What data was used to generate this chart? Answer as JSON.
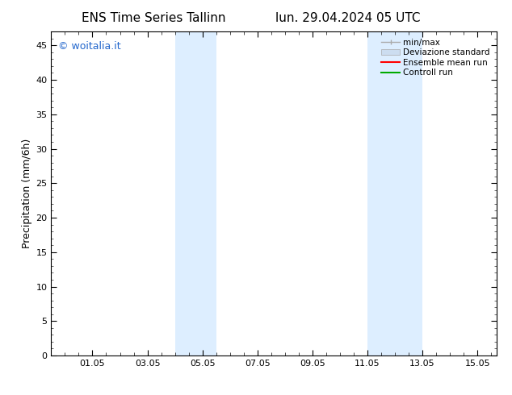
{
  "title": "ENS Time Series Tallinn",
  "title2": "lun. 29.04.2024 05 UTC",
  "ylabel": "Precipitation (mm/6h)",
  "xlim": [
    -0.5,
    15.7
  ],
  "ylim": [
    0,
    47
  ],
  "yticks": [
    0,
    5,
    10,
    15,
    20,
    25,
    30,
    35,
    40,
    45
  ],
  "xtick_labels": [
    "01.05",
    "03.05",
    "05.05",
    "07.05",
    "09.05",
    "11.05",
    "13.05",
    "15.05"
  ],
  "xtick_positions": [
    1.0,
    3.0,
    5.0,
    7.0,
    9.0,
    11.0,
    13.0,
    15.0
  ],
  "minor_xtick_positions": [
    0.0,
    0.5,
    1.0,
    1.5,
    2.0,
    2.5,
    3.0,
    3.5,
    4.0,
    4.5,
    5.0,
    5.5,
    6.0,
    6.5,
    7.0,
    7.5,
    8.0,
    8.5,
    9.0,
    9.5,
    10.0,
    10.5,
    11.0,
    11.5,
    12.0,
    12.5,
    13.0,
    13.5,
    14.0,
    14.5,
    15.0,
    15.5
  ],
  "shaded_bands": [
    {
      "x_start": 4.0,
      "x_end": 5.5
    },
    {
      "x_start": 11.0,
      "x_end": 13.0
    }
  ],
  "band_color": "#ddeeff",
  "background_color": "#ffffff",
  "watermark_text": "© woitalia.it",
  "watermark_color": "#2266cc",
  "legend_items": [
    {
      "label": "min/max",
      "color": "#aaaaaa",
      "lw": 1.0,
      "style": "line_with_ticks"
    },
    {
      "label": "Deviazione standard",
      "color": "#ccddf0",
      "style": "patch"
    },
    {
      "label": "Ensemble mean run",
      "color": "#ff0000",
      "lw": 1.5,
      "style": "line"
    },
    {
      "label": "Controll run",
      "color": "#00aa00",
      "lw": 1.5,
      "style": "line"
    }
  ],
  "font_size_title": 11,
  "font_size_axis": 9,
  "font_size_tick": 8,
  "font_size_legend": 7.5,
  "font_size_watermark": 9
}
